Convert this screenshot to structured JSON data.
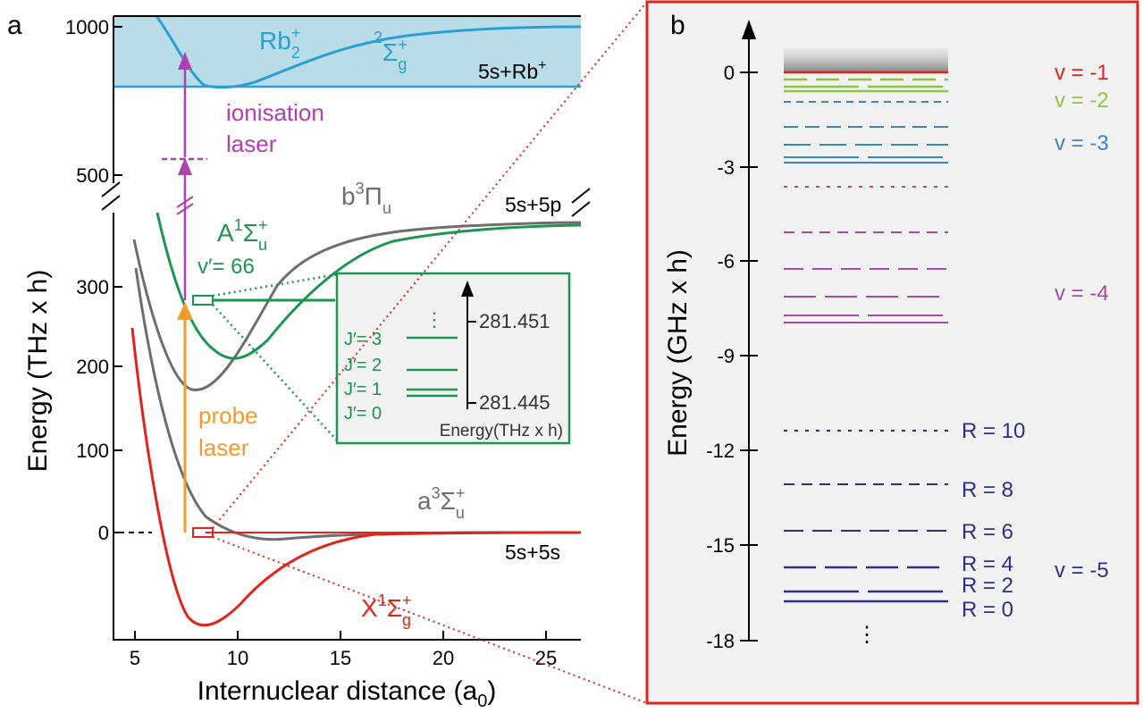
{
  "panel_a": {
    "label": "a",
    "y_axis_title": "Energy (THz x h)",
    "x_axis_title_main": "Internuclear distance (a",
    "x_axis_title_sub": "0",
    "x_axis_title_end": ")",
    "x_ticks": [
      "5",
      "10",
      "15",
      "20",
      "25"
    ],
    "y_ticks_lower": [
      "0",
      "100",
      "200",
      "300"
    ],
    "y_ticks_upper": [
      "500",
      "1000"
    ],
    "ion_label": "Rb",
    "ion_sub": "2",
    "ion_sup": "+",
    "ion_state_sup": "2",
    "ion_state_main": "Σ",
    "ion_state_sub": "g",
    "ion_state_sup2": "+",
    "ion_asymptote": "5s+Rb",
    "ion_asymptote_sup": "+",
    "ionisation_line1": "ionisation",
    "ionisation_line2": "laser",
    "probe_line1": "probe",
    "probe_line2": "laser",
    "b_state_main": "b",
    "b_state_sup": "3",
    "b_state_rest": "Π",
    "b_state_sub": "u",
    "asym_5s5p": "5s+5p",
    "A_state_main": "A",
    "A_state_sup": "1",
    "A_state_rest": "Σ",
    "A_state_sub": "u",
    "A_state_sup2": "+",
    "vprime": "v′= 66",
    "a_state_main": "a",
    "a_state_sup": "3",
    "a_state_rest": "Σ",
    "a_state_sub": "u",
    "a_state_sup2": "+",
    "asym_5s5s": "5s+5s",
    "X_state_main": "X",
    "X_state_sup": "1",
    "X_state_rest": "Σ",
    "X_state_sub": "g",
    "X_state_sup2": "+",
    "inset": {
      "levels": [
        "J′= 3",
        "J′= 2",
        "J′= 1",
        "J′= 0"
      ],
      "dots": "⋮",
      "top_value": "281.451",
      "bottom_value": "281.445",
      "axis_label": "Energy(THz x h)"
    },
    "colors": {
      "ion": "#2a9fd6",
      "ion_fill": "#b8dce8",
      "ionisation": "#b040b0",
      "probe": "#f39a2a",
      "A": "#1a9650",
      "b": "#6e6e6e",
      "X": "#e2231a"
    }
  },
  "panel_b": {
    "label": "b",
    "y_axis_title": "Energy (GHz x h)",
    "y_ticks": [
      "0",
      "-3",
      "-6",
      "-9",
      "-12",
      "-15",
      "-18"
    ],
    "vib_labels": [
      {
        "text": "v = -1",
        "color": "#e2231a"
      },
      {
        "text": "v = -2",
        "color": "#8cc63f"
      },
      {
        "text": "v = -3",
        "color": "#3a87c8"
      },
      {
        "text": "v = -4",
        "color": "#a54aa8"
      },
      {
        "text": "v = -5",
        "color": "#2e2e8c"
      }
    ],
    "rot_labels": [
      "R = 10",
      "R = 8",
      "R = 6",
      "R = 4",
      "R = 2",
      "R = 0"
    ],
    "dots": "⋮",
    "border_color": "#e2231a"
  }
}
